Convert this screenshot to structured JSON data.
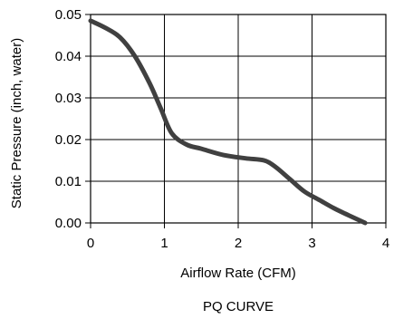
{
  "chart_data": {
    "type": "line",
    "xlabel": "Airflow Rate (CFM)",
    "ylabel": "Static Pressure (inch, water)",
    "caption": "PQ CURVE",
    "xlim": [
      0,
      4
    ],
    "ylim": [
      0,
      0.05
    ],
    "x_ticks": [
      0,
      1,
      2,
      3,
      4
    ],
    "y_ticks": [
      0,
      0.01,
      0.02,
      0.03,
      0.04,
      0.05
    ],
    "x_tick_labels": [
      "0",
      "1",
      "2",
      "3",
      "4"
    ],
    "y_tick_labels": [
      "0.00",
      "0.01",
      "0.02",
      "0.03",
      "0.04",
      "0.05"
    ],
    "grid": true,
    "legend": "none",
    "series": [
      {
        "color": "#404040",
        "x": [
          0,
          0.2,
          0.4,
          0.6,
          0.8,
          0.95,
          1.1,
          1.3,
          1.5,
          1.8,
          2.1,
          2.35,
          2.5,
          2.7,
          2.9,
          3.1,
          3.3,
          3.5,
          3.72
        ],
        "y": [
          0.0485,
          0.0468,
          0.0445,
          0.04,
          0.0335,
          0.0275,
          0.0215,
          0.0188,
          0.0178,
          0.0163,
          0.0155,
          0.015,
          0.0135,
          0.0105,
          0.0075,
          0.0055,
          0.0035,
          0.0018,
          0.0
        ]
      }
    ]
  }
}
